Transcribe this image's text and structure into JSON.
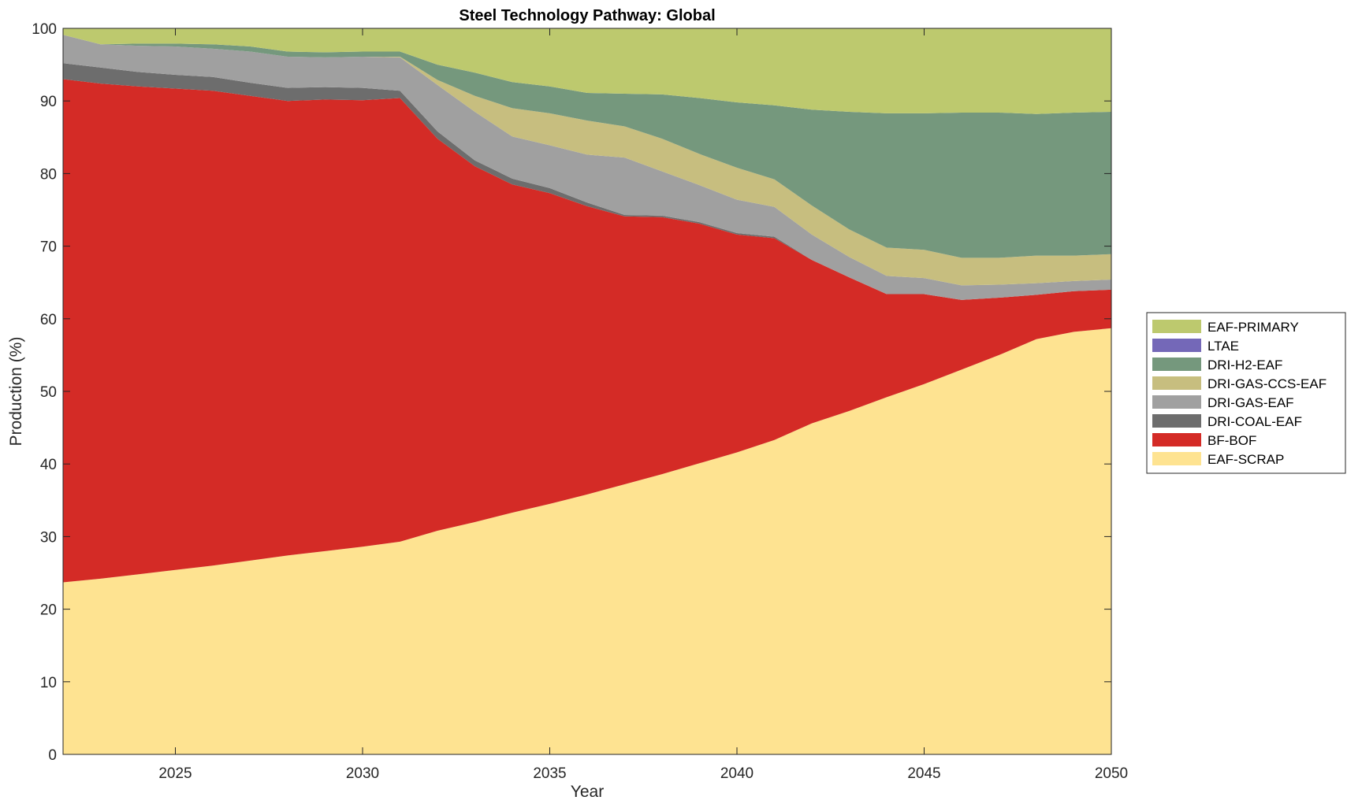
{
  "chart_data": {
    "type": "area",
    "stacked": true,
    "title": "Steel Technology Pathway: Global",
    "xlabel": "Year",
    "ylabel": "Production (%)",
    "xlim": [
      2022,
      2050
    ],
    "ylim": [
      0,
      100
    ],
    "xticks": [
      2025,
      2030,
      2035,
      2040,
      2045,
      2050
    ],
    "yticks": [
      0,
      10,
      20,
      30,
      40,
      50,
      60,
      70,
      80,
      90,
      100
    ],
    "x": [
      2022,
      2023,
      2024,
      2025,
      2026,
      2027,
      2028,
      2029,
      2030,
      2031,
      2032,
      2033,
      2034,
      2035,
      2036,
      2037,
      2038,
      2039,
      2040,
      2041,
      2042,
      2043,
      2044,
      2045,
      2046,
      2047,
      2048,
      2049,
      2050
    ],
    "legend_position": "right",
    "series": [
      {
        "name": "EAF-SCRAP",
        "color": "#FEE391",
        "values": [
          23.7,
          24.2,
          24.8,
          25.4,
          26.0,
          26.7,
          27.4,
          28.0,
          28.6,
          29.3,
          30.8,
          32.0,
          33.3,
          34.5,
          35.8,
          37.2,
          38.6,
          40.1,
          41.6,
          43.3,
          45.6,
          47.3,
          49.2,
          51.0,
          53.0,
          55.0,
          57.2,
          58.2,
          58.7
        ]
      },
      {
        "name": "BF-BOF",
        "color": "#D42B26",
        "values": [
          69.3,
          68.2,
          67.2,
          66.3,
          65.4,
          64.0,
          62.6,
          62.2,
          61.5,
          61.1,
          54.0,
          49.0,
          45.2,
          42.8,
          39.7,
          36.9,
          35.4,
          33.0,
          30.0,
          27.8,
          22.5,
          18.4,
          14.2,
          12.4,
          9.6,
          7.9,
          6.1,
          5.6,
          5.3
        ]
      },
      {
        "name": "DRI-COAL-EAF",
        "color": "#6D6D6D",
        "values": [
          2.2,
          2.2,
          2.0,
          1.9,
          1.9,
          1.8,
          1.8,
          1.7,
          1.7,
          1.0,
          1.0,
          0.8,
          0.8,
          0.7,
          0.5,
          0.2,
          0.2,
          0.2,
          0.2,
          0.2,
          0.0,
          0.0,
          0.0,
          0.0,
          0.0,
          0.0,
          0.0,
          0.0,
          0.0
        ]
      },
      {
        "name": "DRI-GAS-EAF",
        "color": "#A0A0A0",
        "values": [
          3.9,
          3.2,
          3.6,
          3.9,
          3.9,
          4.3,
          4.3,
          4.1,
          4.3,
          4.6,
          6.4,
          6.7,
          5.8,
          5.9,
          6.6,
          7.9,
          6.1,
          5.1,
          4.6,
          4.1,
          3.5,
          2.8,
          2.5,
          2.2,
          2.0,
          1.8,
          1.6,
          1.4,
          1.4
        ]
      },
      {
        "name": "DRI-GAS-CCS-EAF",
        "color": "#C7BE7F",
        "values": [
          0.0,
          0.0,
          0.0,
          0.0,
          0.0,
          0.0,
          0.0,
          0.0,
          0.0,
          0.1,
          0.7,
          2.2,
          3.9,
          4.4,
          4.7,
          4.3,
          4.5,
          4.3,
          4.4,
          3.8,
          4.0,
          3.8,
          3.9,
          3.9,
          3.8,
          3.7,
          3.8,
          3.5,
          3.5
        ]
      },
      {
        "name": "DRI-H2-EAF",
        "color": "#75987D",
        "values": [
          0.0,
          0.0,
          0.3,
          0.4,
          0.6,
          0.7,
          0.7,
          0.7,
          0.7,
          0.7,
          2.1,
          3.2,
          3.6,
          3.7,
          3.8,
          4.5,
          6.1,
          7.7,
          9.0,
          10.2,
          13.2,
          16.2,
          18.5,
          18.8,
          20.0,
          20.0,
          19.5,
          19.7,
          19.6
        ]
      },
      {
        "name": "LTAE",
        "color": "#7468B8",
        "values": [
          0.0,
          0.0,
          0.0,
          0.0,
          0.0,
          0.0,
          0.0,
          0.0,
          0.0,
          0.0,
          0.0,
          0.0,
          0.0,
          0.0,
          0.0,
          0.0,
          0.0,
          0.0,
          0.0,
          0.0,
          0.0,
          0.0,
          0.0,
          0.0,
          0.0,
          0.0,
          0.0,
          0.0,
          0.0
        ]
      },
      {
        "name": "EAF-PRIMARY",
        "color": "#BDC96E",
        "values": [
          0.9,
          2.2,
          2.1,
          2.1,
          2.2,
          2.5,
          3.2,
          3.3,
          3.2,
          3.2,
          5.0,
          6.1,
          7.4,
          8.0,
          8.9,
          9.0,
          9.1,
          9.6,
          10.2,
          10.6,
          11.2,
          11.5,
          11.7,
          11.7,
          11.6,
          11.6,
          11.8,
          11.6,
          11.5
        ]
      }
    ],
    "legend_order": [
      "EAF-PRIMARY",
      "LTAE",
      "DRI-H2-EAF",
      "DRI-GAS-CCS-EAF",
      "DRI-GAS-EAF",
      "DRI-COAL-EAF",
      "BF-BOF",
      "EAF-SCRAP"
    ]
  }
}
